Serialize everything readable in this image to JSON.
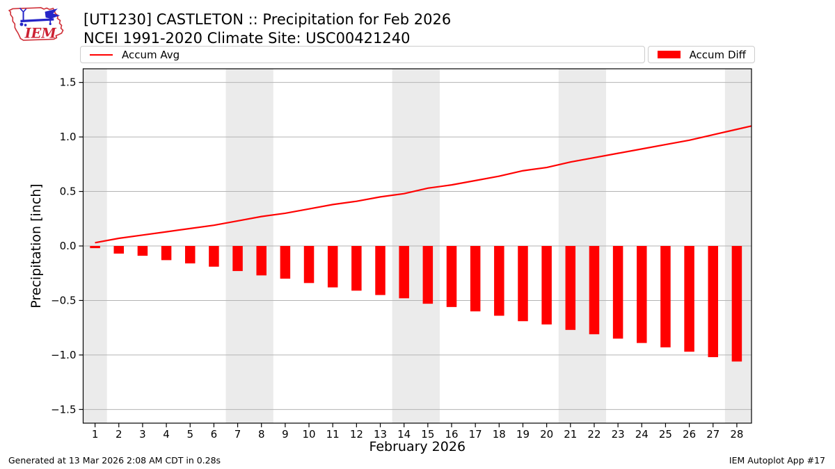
{
  "header": {
    "title_line1": "[UT1230] CASTLETON :: Precipitation for Feb 2026",
    "title_line2": "NCEI 1991-2020 Climate Site: USC00421240",
    "logo_text": "IEM"
  },
  "legend": {
    "avg_label": "Accum Avg",
    "diff_label": "Accum Diff"
  },
  "footer": {
    "left": "Generated at 13 Mar 2026 2:08 AM CDT in 0.28s",
    "right": "IEM Autoplot App #17"
  },
  "chart_data": {
    "type": "bar",
    "title": "[UT1230] CASTLETON :: Precipitation for Feb 2026",
    "subtitle": "NCEI 1991-2020 Climate Site: USC00421240",
    "xlabel": "February 2026",
    "ylabel": "Precipitation [inch]",
    "ylim": [
      -1.62,
      1.62
    ],
    "yticks": {
      "values": [
        1.5,
        1.0,
        0.5,
        0.0,
        -0.5,
        -1.0,
        -1.5
      ],
      "labels": [
        "1.5",
        "1.0",
        "0.5",
        "0.0",
        "−0.5",
        "−1.0",
        "−1.5"
      ]
    },
    "x": [
      1,
      2,
      3,
      4,
      5,
      6,
      7,
      8,
      9,
      10,
      11,
      12,
      13,
      14,
      15,
      16,
      17,
      18,
      19,
      20,
      21,
      22,
      23,
      24,
      25,
      26,
      27,
      28
    ],
    "series": [
      {
        "name": "Accum Avg",
        "type": "line",
        "color": "#ff0000",
        "values": [
          0.03,
          0.07,
          0.1,
          0.13,
          0.16,
          0.19,
          0.23,
          0.27,
          0.3,
          0.34,
          0.38,
          0.41,
          0.45,
          0.48,
          0.53,
          0.56,
          0.6,
          0.64,
          0.69,
          0.72,
          0.77,
          0.81,
          0.85,
          0.89,
          0.93,
          0.97,
          1.02,
          1.07
        ]
      },
      {
        "name": "Accum Diff",
        "type": "bar",
        "color": "#ff0000",
        "values": [
          -0.02,
          -0.07,
          -0.09,
          -0.13,
          -0.16,
          -0.19,
          -0.23,
          -0.27,
          -0.3,
          -0.34,
          -0.38,
          -0.41,
          -0.45,
          -0.48,
          -0.53,
          -0.56,
          -0.6,
          -0.64,
          -0.69,
          -0.72,
          -0.77,
          -0.81,
          -0.85,
          -0.89,
          -0.93,
          -0.97,
          -1.02,
          -1.06
        ]
      }
    ],
    "weekend_bands_days": [
      [
        1,
        1
      ],
      [
        7,
        8
      ],
      [
        14,
        15
      ],
      [
        21,
        22
      ],
      [
        28,
        28
      ]
    ],
    "band_color": "#ebebeb",
    "grid_color": "#b3b3b3",
    "frame_color": "#000000",
    "legend_position": "top",
    "grid": "horizontal-only"
  }
}
